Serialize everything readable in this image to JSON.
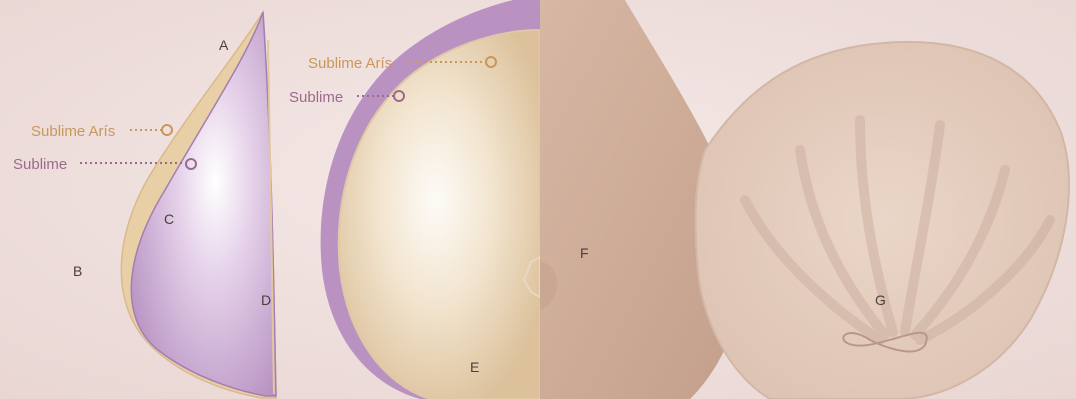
{
  "colors": {
    "background": "#f1e3e1",
    "sublime_aris": "#c9975b",
    "sublime": "#9d6a8e",
    "purple_shell": "#b992c2",
    "beige_core": "#e8cfa6",
    "skin_front": "#ccab97",
    "skin_back": "#e6d0c0",
    "label_text": "#4a3e3f"
  },
  "callouts": {
    "side_view": {
      "sublime_aris": "Sublime Arís",
      "sublime": "Sublime"
    },
    "front_view": {
      "sublime_aris": "Sublime Arís",
      "sublime": "Sublime"
    }
  },
  "labels": {
    "a": "A",
    "b": "B",
    "c": "C",
    "d": "D",
    "e": "E",
    "f": "F",
    "g": "G"
  }
}
